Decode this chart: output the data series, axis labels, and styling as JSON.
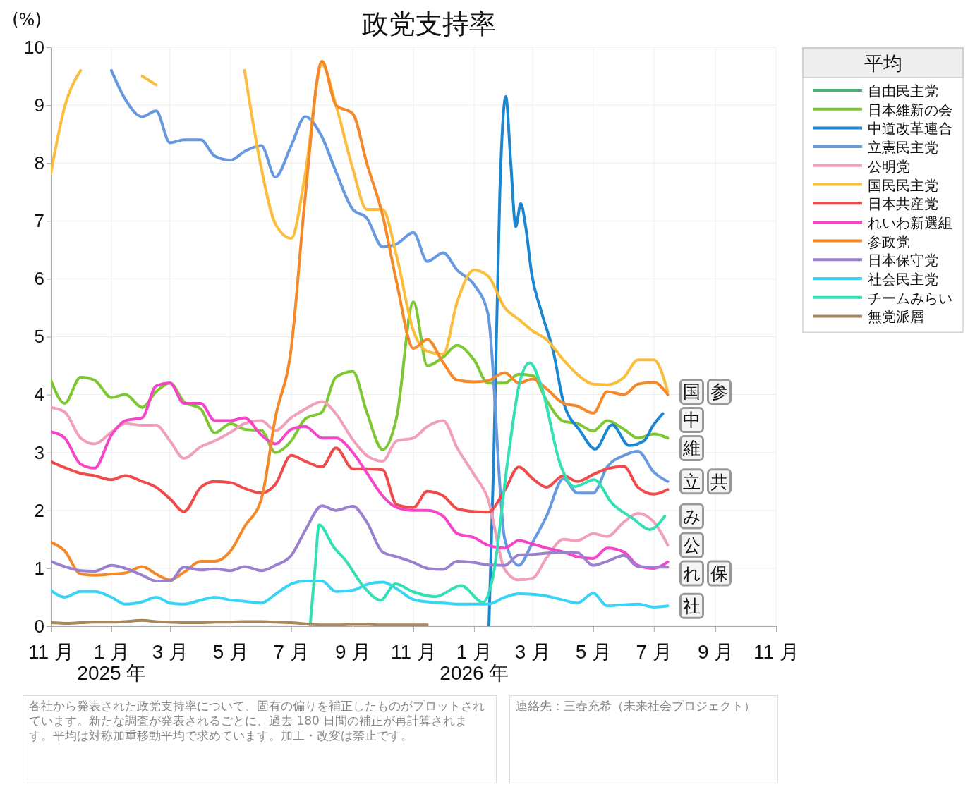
{
  "chart_data": {
    "type": "line",
    "title": "政党支持率",
    "ylabel": "(%)",
    "legend_title": "平均",
    "legend": "right",
    "grid": true,
    "marker": "none",
    "line_style": "solid",
    "xlim": [
      "2024-11-01",
      "2026-11-01"
    ],
    "xticks": [
      {
        "value": "2024-11-01",
        "label": "11 月"
      },
      {
        "value": "2025-01-01",
        "label": "1 月\n2025 年"
      },
      {
        "value": "2025-03-01",
        "label": "3 月"
      },
      {
        "value": "2025-05-01",
        "label": "5 月"
      },
      {
        "value": "2025-07-01",
        "label": "7 月"
      },
      {
        "value": "2025-09-01",
        "label": "9 月"
      },
      {
        "value": "2025-11-01",
        "label": "11 月"
      },
      {
        "value": "2026-01-01",
        "label": "1 月\n2026 年"
      },
      {
        "value": "2026-03-01",
        "label": "3 月"
      },
      {
        "value": "2026-05-01",
        "label": "5 月"
      },
      {
        "value": "2026-07-01",
        "label": "7 月"
      },
      {
        "value": "2026-09-01",
        "label": "9 月"
      },
      {
        "value": "2026-11-01",
        "label": "11 月"
      }
    ],
    "ylim": [
      0,
      10
    ],
    "yticks": [
      0,
      1,
      2,
      3,
      4,
      5,
      6,
      7,
      8,
      9,
      10
    ],
    "x": [
      "2024-11-01",
      "2024-11-15",
      "2024-12-01",
      "2024-12-15",
      "2025-01-01",
      "2025-01-15",
      "2025-02-01",
      "2025-02-15",
      "2025-03-01",
      "2025-03-15",
      "2025-04-01",
      "2025-04-15",
      "2025-05-01",
      "2025-05-15",
      "2025-06-01",
      "2025-06-15",
      "2025-07-01",
      "2025-07-15",
      "2025-08-01",
      "2025-08-15",
      "2025-09-01",
      "2025-09-15",
      "2025-10-01",
      "2025-10-15",
      "2025-11-01",
      "2025-11-15",
      "2025-12-01",
      "2025-12-15",
      "2026-01-01",
      "2026-01-15",
      "2026-02-01",
      "2026-02-15",
      "2026-03-01",
      "2026-03-15",
      "2026-04-01",
      "2026-04-15",
      "2026-05-01",
      "2026-05-15",
      "2026-06-01",
      "2026-06-15",
      "2026-07-01",
      "2026-07-15"
    ],
    "series": [
      {
        "name": "自由民主党",
        "color": "#4caf7a",
        "values": [
          null,
          null,
          null,
          null,
          null,
          null,
          null,
          null,
          null,
          null,
          null,
          null,
          null,
          null,
          null,
          null,
          null,
          null,
          null,
          null,
          null,
          null,
          null,
          null,
          null,
          null,
          null,
          null,
          null,
          null,
          null,
          null,
          null,
          null,
          null,
          null,
          null,
          null,
          null,
          null,
          null,
          null
        ]
      },
      {
        "name": "日本維新の会",
        "color": "#7dc832",
        "values": [
          4.25,
          3.85,
          4.3,
          4.25,
          3.95,
          4.0,
          3.78,
          4.05,
          4.2,
          3.88,
          3.75,
          3.34,
          3.5,
          3.4,
          3.38,
          3.0,
          3.2,
          3.58,
          3.7,
          4.3,
          4.4,
          3.7,
          3.05,
          3.6,
          5.6,
          4.5,
          4.65,
          4.85,
          4.6,
          4.2,
          4.2,
          4.35,
          4.33,
          3.9,
          3.54,
          3.5,
          3.37,
          3.55,
          3.4,
          3.25,
          3.32,
          3.25
        ]
      },
      {
        "name": "中道改革連合",
        "color": "#1b86d2",
        "x": [
          "2026-01-16",
          "2026-01-21",
          "2026-01-27",
          "2026-02-02",
          "2026-02-07",
          "2026-02-12",
          "2026-02-17",
          "2026-02-22",
          "2026-02-28",
          "2026-03-10",
          "2026-03-22",
          "2026-04-01",
          "2026-04-18",
          "2026-05-03",
          "2026-05-20",
          "2026-06-06",
          "2026-06-21",
          "2026-06-30",
          "2026-07-10"
        ],
        "values": [
          0,
          3.0,
          7.5,
          9.15,
          8.0,
          6.9,
          7.3,
          6.9,
          6.09,
          5.42,
          4.73,
          3.87,
          3.37,
          3.06,
          3.48,
          3.12,
          3.2,
          3.46,
          3.67
        ]
      },
      {
        "name": "立憲民主党",
        "color": "#6699e0",
        "values": [
          null,
          null,
          null,
          null,
          9.6,
          9.1,
          8.8,
          8.9,
          8.35,
          8.4,
          8.4,
          8.12,
          8.05,
          8.2,
          8.3,
          7.76,
          8.3,
          8.8,
          8.45,
          7.85,
          7.2,
          7.05,
          6.55,
          6.6,
          6.8,
          6.3,
          6.45,
          6.15,
          5.9,
          5.4,
          1.5,
          1.05,
          1.45,
          1.9,
          2.55,
          2.3,
          2.3,
          2.75,
          2.95,
          3.02,
          2.66,
          2.5
        ]
      },
      {
        "name": "公明党",
        "color": "#f0a0b8",
        "values": [
          3.78,
          3.7,
          3.25,
          3.15,
          3.35,
          3.5,
          3.47,
          3.47,
          3.2,
          2.9,
          3.1,
          3.2,
          3.35,
          3.5,
          3.55,
          3.38,
          3.6,
          3.75,
          3.88,
          3.67,
          3.22,
          2.95,
          2.85,
          3.2,
          3.25,
          3.45,
          3.55,
          3.08,
          2.62,
          2.2,
          0.98,
          0.8,
          0.83,
          1.18,
          1.5,
          1.48,
          1.6,
          1.55,
          1.8,
          1.95,
          1.8,
          1.4
        ]
      },
      {
        "name": "国民民主党",
        "color": "#fbbd3c",
        "values": [
          7.82,
          8.97,
          9.6,
          null,
          null,
          null,
          9.5,
          9.35,
          null,
          null,
          null,
          null,
          null,
          9.6,
          7.9,
          6.95,
          6.7,
          7.8,
          9.7,
          9.0,
          7.9,
          7.2,
          7.2,
          6.4,
          5.1,
          4.75,
          4.7,
          5.6,
          6.15,
          6.05,
          5.5,
          5.3,
          5.1,
          4.95,
          4.6,
          4.35,
          4.18,
          4.17,
          4.3,
          4.6,
          4.6,
          4.05
        ]
      },
      {
        "name": "日本共産党",
        "color": "#f04a4a",
        "values": [
          2.84,
          2.74,
          2.64,
          2.6,
          2.53,
          2.6,
          2.5,
          2.4,
          2.2,
          1.98,
          2.4,
          2.5,
          2.48,
          2.38,
          2.3,
          2.45,
          2.95,
          2.85,
          2.75,
          3.08,
          2.72,
          2.72,
          2.7,
          2.1,
          2.05,
          2.33,
          2.25,
          2.03,
          1.98,
          1.97,
          2.35,
          2.75,
          2.55,
          2.4,
          2.6,
          2.5,
          2.62,
          2.72,
          2.76,
          2.4,
          2.28,
          2.36
        ]
      },
      {
        "name": "れいわ新選組",
        "color": "#f545c8",
        "values": [
          3.36,
          3.25,
          2.8,
          2.73,
          3.3,
          3.55,
          3.6,
          4.15,
          4.2,
          3.85,
          3.85,
          3.55,
          3.55,
          3.6,
          3.3,
          3.15,
          3.4,
          3.45,
          3.25,
          3.25,
          3.0,
          2.65,
          2.25,
          2.05,
          2.0,
          2.0,
          1.9,
          1.6,
          1.53,
          1.4,
          1.35,
          1.48,
          1.42,
          1.35,
          1.28,
          1.2,
          1.17,
          1.35,
          1.28,
          1.05,
          1.0,
          1.11
        ]
      },
      {
        "name": "参政党",
        "color": "#f5892a",
        "values": [
          1.45,
          1.3,
          0.9,
          0.88,
          0.9,
          0.92,
          1.03,
          0.9,
          0.8,
          0.93,
          1.12,
          1.12,
          1.3,
          1.72,
          2.2,
          3.6,
          4.8,
          7.4,
          9.76,
          9.0,
          8.85,
          8.0,
          7.1,
          5.95,
          4.8,
          4.95,
          4.55,
          4.25,
          4.22,
          4.24,
          4.38,
          4.2,
          4.27,
          4.1,
          3.85,
          3.8,
          3.68,
          4.05,
          4.0,
          4.18,
          4.21,
          4.0
        ]
      },
      {
        "name": "日本保守党",
        "color": "#9c80d0",
        "values": [
          1.12,
          1.03,
          0.96,
          0.95,
          1.05,
          1.0,
          0.88,
          0.78,
          0.78,
          1.02,
          0.97,
          0.99,
          0.96,
          1.03,
          0.96,
          1.05,
          1.22,
          1.65,
          2.08,
          2.0,
          2.07,
          1.8,
          1.28,
          1.2,
          1.1,
          1.0,
          0.98,
          1.12,
          1.1,
          1.06,
          1.05,
          1.23,
          1.24,
          1.26,
          1.28,
          1.27,
          1.05,
          1.12,
          1.22,
          1.03,
          1.02,
          1.02
        ]
      },
      {
        "name": "社会民主党",
        "color": "#38d4f8",
        "values": [
          0.62,
          0.5,
          0.6,
          0.6,
          0.5,
          0.38,
          0.42,
          0.5,
          0.4,
          0.38,
          0.45,
          0.5,
          0.45,
          0.43,
          0.4,
          0.55,
          0.73,
          0.78,
          0.78,
          0.6,
          0.62,
          0.72,
          0.76,
          0.65,
          0.46,
          0.42,
          0.4,
          0.38,
          0.38,
          0.38,
          0.5,
          0.56,
          0.55,
          0.52,
          0.45,
          0.4,
          0.57,
          0.35,
          0.37,
          0.38,
          0.33,
          0.35
        ]
      },
      {
        "name": "チームみらい",
        "color": "#33e0b5",
        "x": [
          "2025-07-20",
          "2025-07-25",
          "2025-07-29",
          "2025-08-13",
          "2025-08-24",
          "2025-09-13",
          "2025-09-29",
          "2025-10-14",
          "2025-10-31",
          "2025-11-23",
          "2025-12-19",
          "2026-01-10",
          "2026-01-20",
          "2026-02-04",
          "2026-02-16",
          "2026-02-26",
          "2026-03-10",
          "2026-03-29",
          "2026-04-12",
          "2026-05-02",
          "2026-05-20",
          "2026-06-10",
          "2026-06-27",
          "2026-07-12"
        ],
        "values": [
          0,
          1.0,
          1.75,
          1.36,
          1.15,
          0.66,
          0.45,
          0.73,
          0.6,
          0.51,
          0.7,
          0.41,
          0.85,
          2.87,
          4.21,
          4.55,
          4.13,
          2.79,
          2.41,
          2.53,
          2.12,
          1.86,
          1.67,
          1.9
        ]
      },
      {
        "name": "無党派層",
        "color": "#a8875a",
        "values": [
          0.06,
          0.05,
          0.06,
          0.07,
          0.07,
          0.08,
          0.1,
          0.08,
          0.07,
          0.06,
          0.06,
          0.07,
          0.07,
          0.08,
          0.08,
          0.07,
          0.06,
          0.04,
          0.02,
          0.02,
          0.03,
          0.03,
          0.02,
          0.02,
          0.02,
          0.02,
          null,
          null,
          null,
          null,
          null,
          null,
          null,
          null,
          null,
          null,
          null,
          null,
          null,
          null,
          null,
          null
        ]
      }
    ],
    "annotations": [
      {
        "text": "国",
        "x": "2026-07-15",
        "y": 4.05
      },
      {
        "text": "参",
        "x": "2026-07-15",
        "y": 4.0
      },
      {
        "text": "中",
        "x": "2026-07-10",
        "y": 3.67
      },
      {
        "text": "維",
        "x": "2026-07-15",
        "y": 3.25
      },
      {
        "text": "立",
        "x": "2026-07-15",
        "y": 2.5
      },
      {
        "text": "共",
        "x": "2026-07-15",
        "y": 2.36
      },
      {
        "text": "み",
        "x": "2026-07-12",
        "y": 1.9
      },
      {
        "text": "公",
        "x": "2026-07-15",
        "y": 1.4
      },
      {
        "text": "れ",
        "x": "2026-07-15",
        "y": 1.11
      },
      {
        "text": "保",
        "x": "2026-07-15",
        "y": 1.02
      },
      {
        "text": "社",
        "x": "2026-07-15",
        "y": 0.35
      },
      "各社から発表された政党支持率について、固有の偏りを補正したものがプロットされています。新たな調査が発表されるごとに、過去 180 日間の補正が再計算されます。平均は対称加重移動平均で求めています。加工・改変は禁止です。",
      "連絡先：三春充希（未来社会プロジェクト）"
    ]
  }
}
